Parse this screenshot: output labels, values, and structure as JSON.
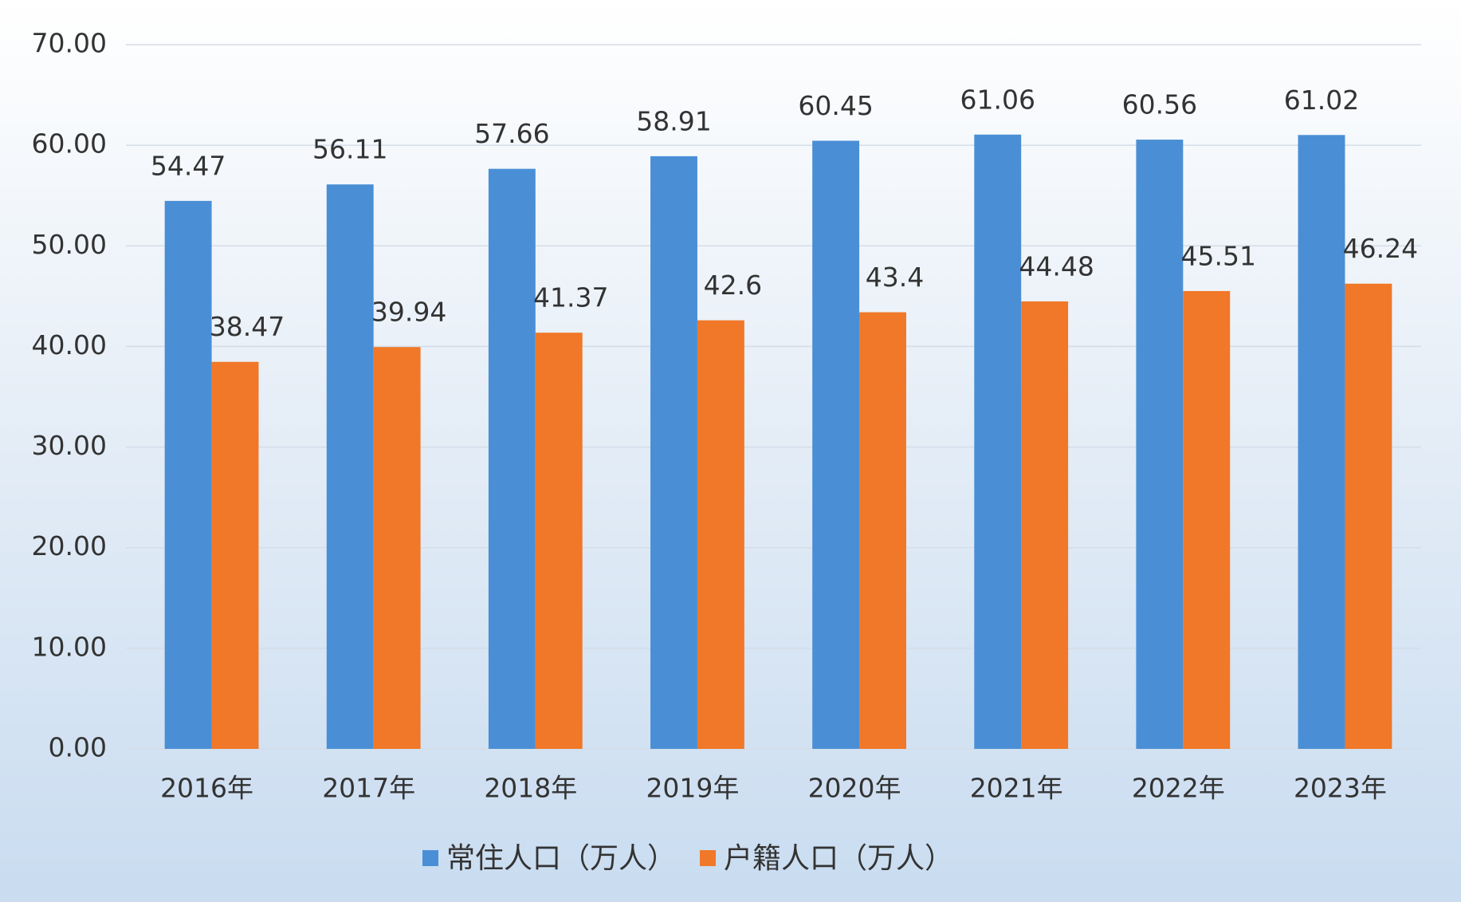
{
  "chart_data": {
    "type": "bar",
    "categories": [
      "2016年",
      "2017年",
      "2018年",
      "2019年",
      "2020年",
      "2021年",
      "2022年",
      "2023年"
    ],
    "series": [
      {
        "name": "常住人口（万人）",
        "color": "#4a8fd6",
        "values": [
          54.47,
          56.11,
          57.66,
          58.91,
          60.45,
          61.06,
          60.56,
          61.02
        ]
      },
      {
        "name": "户籍人口（万人）",
        "color": "#f07828",
        "values": [
          38.47,
          39.94,
          41.37,
          42.6,
          43.4,
          44.48,
          45.51,
          46.24
        ]
      }
    ],
    "ylim": [
      0,
      70
    ],
    "yticks": [
      {
        "value": 0,
        "label": "0.00"
      },
      {
        "value": 10,
        "label": "10.00"
      },
      {
        "value": 20,
        "label": "20.00"
      },
      {
        "value": 30,
        "label": "30.00"
      },
      {
        "value": 40,
        "label": "40.00"
      },
      {
        "value": 50,
        "label": "50.00"
      },
      {
        "value": 60,
        "label": "60.00"
      },
      {
        "value": 70,
        "label": "70.00"
      }
    ],
    "grid": true,
    "legend": "bottom"
  }
}
